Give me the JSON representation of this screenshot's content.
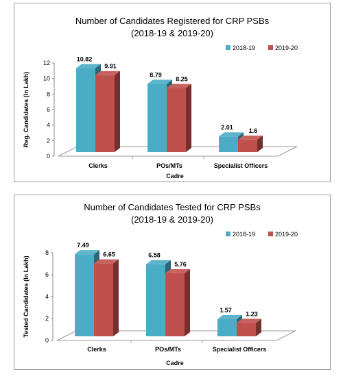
{
  "colors": {
    "series_2018": "#4bacc6",
    "series_2019": "#c0504d"
  },
  "chart_data": [
    {
      "type": "bar",
      "title": "Number of Candidates Registered for CRP PSBs",
      "subtitle": "(2018-19 & 2019-20)",
      "xlabel": "Cadre",
      "ylabel": "Reg. Candidates (In Lakh)",
      "categories": [
        "Clerks",
        "POs/MTs",
        "Specialist Officers"
      ],
      "series": [
        {
          "name": "2018-19",
          "values": [
            10.82,
            8.79,
            2.01
          ],
          "labels": [
            "10.82",
            "8.79",
            "2.01"
          ]
        },
        {
          "name": "2019-20",
          "values": [
            9.91,
            8.25,
            1.6
          ],
          "labels": [
            "9.91",
            "8.25",
            "1.6"
          ]
        }
      ],
      "ylim": [
        0,
        12
      ],
      "yticks": [
        0,
        2,
        4,
        6,
        8,
        10,
        12
      ],
      "legend": "top-right",
      "grid": false,
      "style": "3d-column"
    },
    {
      "type": "bar",
      "title": "Number of Candidates Tested for CRP PSBs",
      "subtitle": "(2018-19 & 2019-20)",
      "xlabel": "Cadre",
      "ylabel": "Tested Candidates (In Lakh)",
      "categories": [
        "Clerks",
        "POs/MTs",
        "Specialist Officers"
      ],
      "series": [
        {
          "name": "2018-19",
          "values": [
            7.49,
            6.58,
            1.57
          ],
          "labels": [
            "7.49",
            "6.58",
            "1.57"
          ]
        },
        {
          "name": "2019-20",
          "values": [
            6.65,
            5.76,
            1.23
          ],
          "labels": [
            "6.65",
            "5.76",
            "1.23"
          ]
        }
      ],
      "ylim": [
        0,
        8
      ],
      "yticks": [
        0,
        2,
        4,
        6,
        8
      ],
      "legend": "top-right",
      "grid": false,
      "style": "3d-column"
    }
  ]
}
